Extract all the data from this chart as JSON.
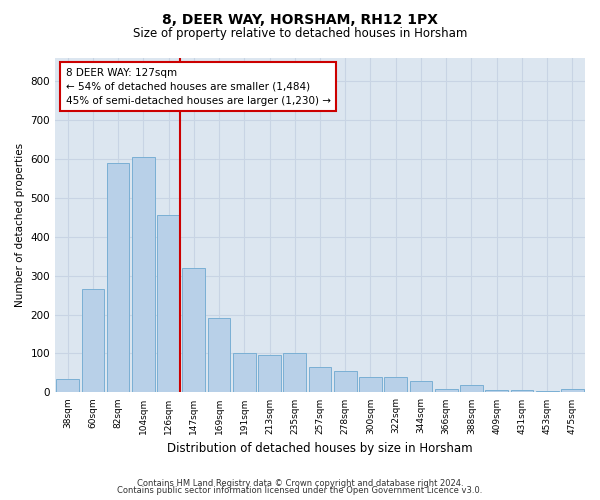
{
  "title1": "8, DEER WAY, HORSHAM, RH12 1PX",
  "title2": "Size of property relative to detached houses in Horsham",
  "xlabel": "Distribution of detached houses by size in Horsham",
  "ylabel": "Number of detached properties",
  "bar_labels": [
    "38sqm",
    "60sqm",
    "82sqm",
    "104sqm",
    "126sqm",
    "147sqm",
    "169sqm",
    "191sqm",
    "213sqm",
    "235sqm",
    "257sqm",
    "278sqm",
    "300sqm",
    "322sqm",
    "344sqm",
    "366sqm",
    "388sqm",
    "409sqm",
    "431sqm",
    "453sqm",
    "475sqm"
  ],
  "bar_values": [
    35,
    265,
    590,
    605,
    455,
    320,
    190,
    100,
    95,
    100,
    65,
    55,
    40,
    40,
    30,
    10,
    18,
    5,
    5,
    4,
    8
  ],
  "bar_color": "#b8d0e8",
  "bar_edge_color": "#7aafd4",
  "vline_color": "#cc0000",
  "annotation_text": "8 DEER WAY: 127sqm\n← 54% of detached houses are smaller (1,484)\n45% of semi-detached houses are larger (1,230) →",
  "annotation_box_color": "#ffffff",
  "annotation_box_edge": "#cc0000",
  "ylim": [
    0,
    860
  ],
  "yticks": [
    0,
    100,
    200,
    300,
    400,
    500,
    600,
    700,
    800
  ],
  "grid_color": "#c8d4e4",
  "bg_color": "#dce6f0",
  "footer1": "Contains HM Land Registry data © Crown copyright and database right 2024.",
  "footer2": "Contains public sector information licensed under the Open Government Licence v3.0."
}
